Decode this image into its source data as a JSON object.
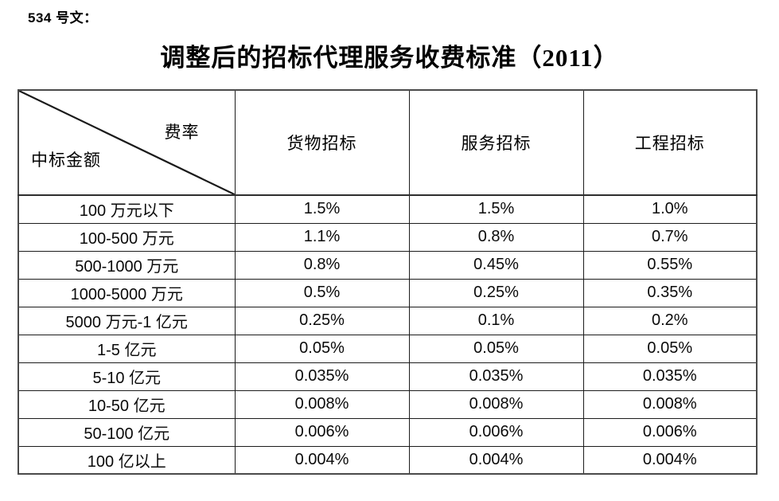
{
  "doc_label": "534 号文：",
  "title": "调整后的招标代理服务收费标准（2011）",
  "table": {
    "corner_top_right": "费率",
    "corner_bottom_left": "中标金额",
    "columns": [
      "货物招标",
      "服务招标",
      "工程招标"
    ],
    "rows": [
      {
        "label": "100 万元以下",
        "values": [
          "1.5%",
          "1.5%",
          "1.0%"
        ]
      },
      {
        "label": "100-500 万元",
        "values": [
          "1.1%",
          "0.8%",
          "0.7%"
        ]
      },
      {
        "label": "500-1000 万元",
        "values": [
          "0.8%",
          "0.45%",
          "0.55%"
        ]
      },
      {
        "label": "1000-5000 万元",
        "values": [
          "0.5%",
          "0.25%",
          "0.35%"
        ]
      },
      {
        "label": "5000 万元-1 亿元",
        "values": [
          "0.25%",
          "0.1%",
          "0.2%"
        ]
      },
      {
        "label": "1-5 亿元",
        "values": [
          "0.05%",
          "0.05%",
          "0.05%"
        ]
      },
      {
        "label": "5-10 亿元",
        "values": [
          "0.035%",
          "0.035%",
          "0.035%"
        ]
      },
      {
        "label": "10-50 亿元",
        "values": [
          "0.008%",
          "0.008%",
          "0.008%"
        ]
      },
      {
        "label": "50-100 亿元",
        "values": [
          "0.006%",
          "0.006%",
          "0.006%"
        ]
      },
      {
        "label": "100 亿以上",
        "values": [
          "0.004%",
          "0.004%",
          "0.004%"
        ]
      }
    ]
  }
}
